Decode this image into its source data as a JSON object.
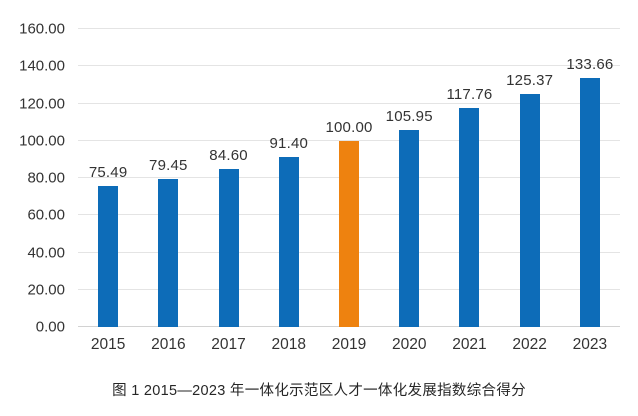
{
  "chart_data": {
    "type": "bar",
    "title": "",
    "caption": "图 1  2015—2023 年一体化示范区人才一体化发展指数综合得分",
    "categories": [
      "2015",
      "2016",
      "2017",
      "2018",
      "2019",
      "2020",
      "2021",
      "2022",
      "2023"
    ],
    "values": [
      75.49,
      79.45,
      84.6,
      91.4,
      100.0,
      105.95,
      117.76,
      125.37,
      133.66
    ],
    "value_labels": [
      "75.49",
      "79.45",
      "84.60",
      "91.40",
      "100.00",
      "105.95",
      "117.76",
      "125.37",
      "133.66"
    ],
    "highlight_index": 4,
    "bar_colors": [
      "#0d6cb8",
      "#0d6cb8",
      "#0d6cb8",
      "#0d6cb8",
      "#ee820f",
      "#0d6cb8",
      "#0d6cb8",
      "#0d6cb8",
      "#0d6cb8"
    ],
    "xlabel": "",
    "ylabel": "",
    "ylim": [
      0,
      160
    ],
    "yticks": [
      0,
      20,
      40,
      60,
      80,
      100,
      120,
      140,
      160
    ],
    "ytick_labels": [
      "0.00",
      "20.00",
      "40.00",
      "60.00",
      "80.00",
      "100.00",
      "120.00",
      "140.00",
      "160.00"
    ],
    "grid": true,
    "legend": false
  },
  "caption": {
    "text": "图 1  2015—2023 年一体化示范区人才一体化发展指数综合得分"
  },
  "colors": {
    "bar_default": "#0d6cb8",
    "bar_highlight": "#ee820f",
    "gridline": "#e4e4e4",
    "axis_line": "#d2d2d2",
    "text": "#333333"
  }
}
